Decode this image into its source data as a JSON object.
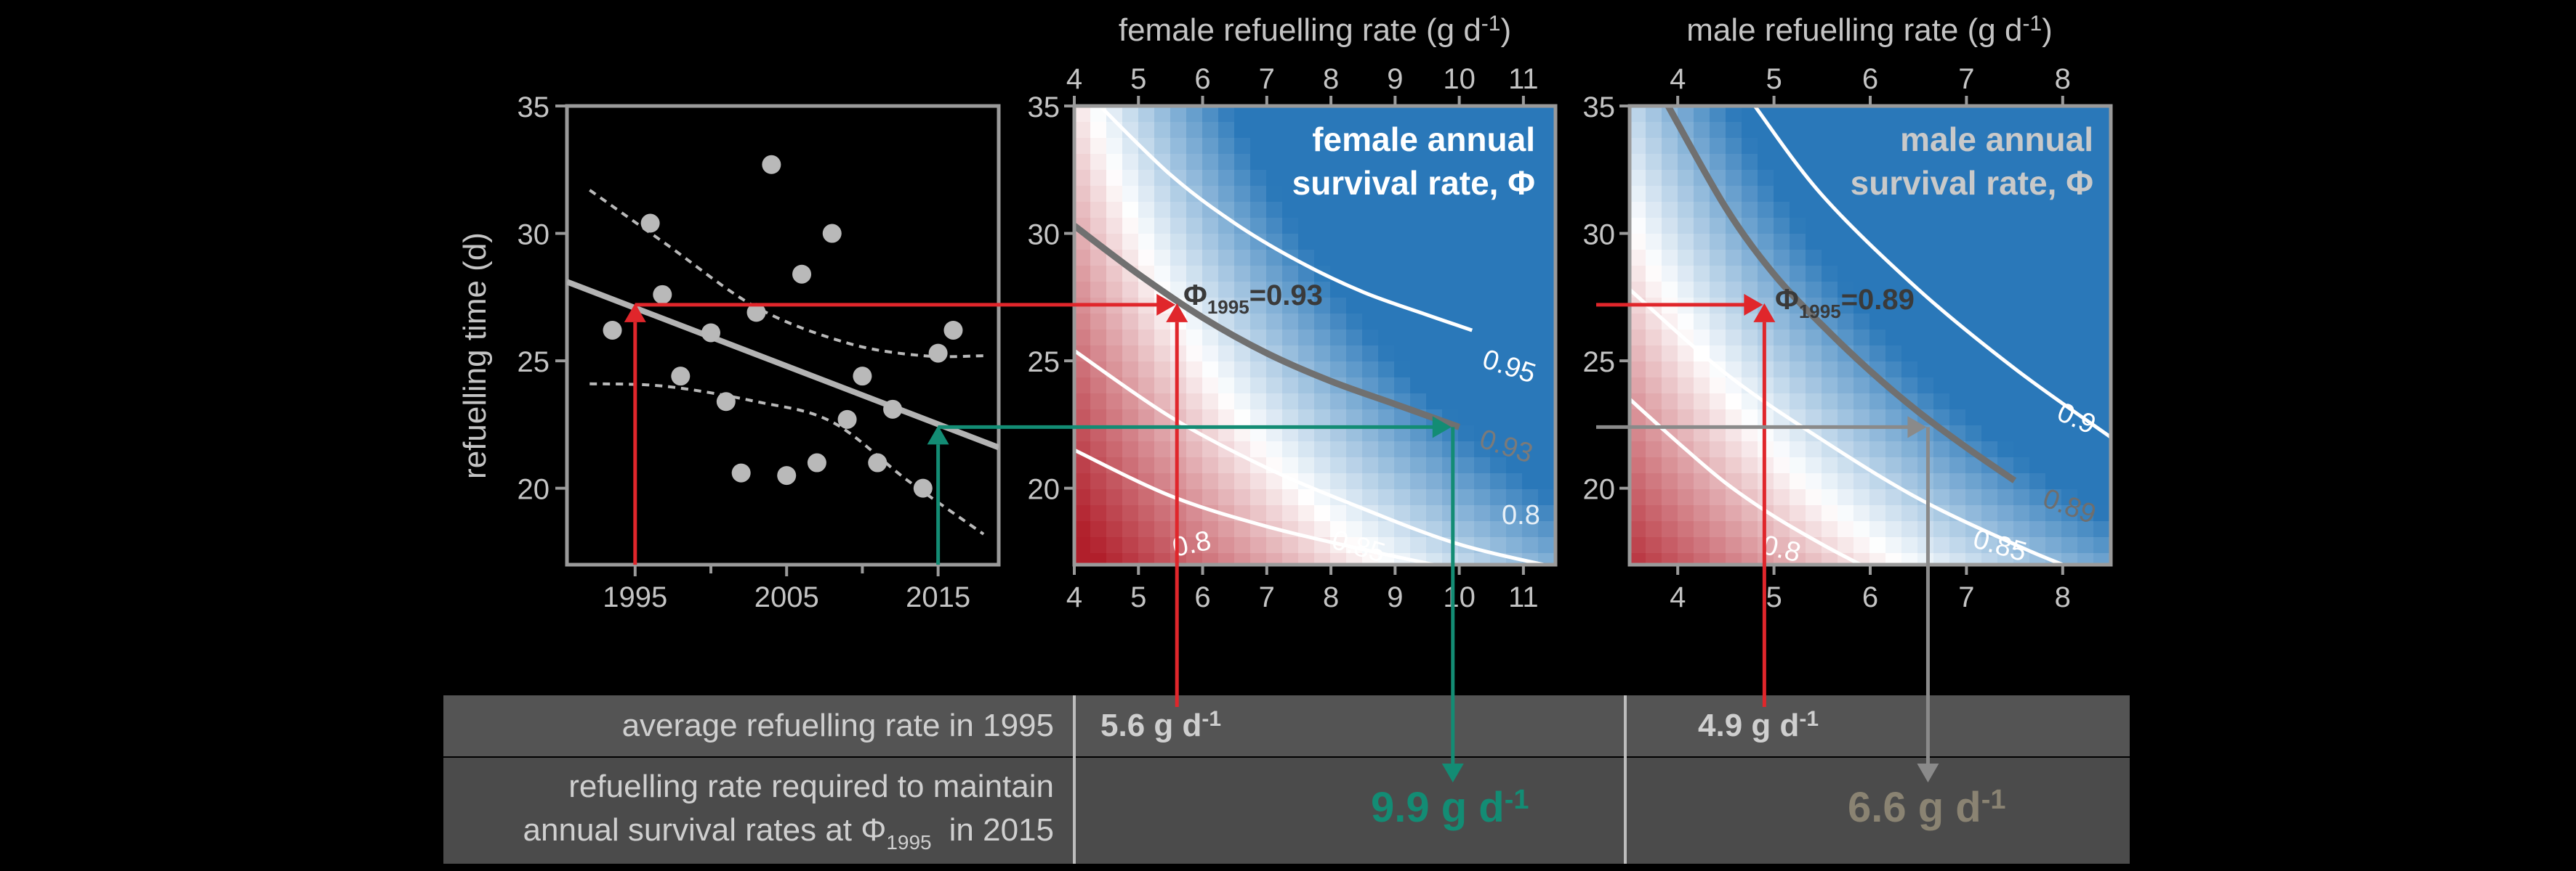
{
  "chart_data": [
    {
      "type": "scatter",
      "ylabel": "refuelling time (d)",
      "xlim": [
        1990.5,
        2019
      ],
      "ylim": [
        17,
        35
      ],
      "xticks": [
        1995,
        2005,
        2015
      ],
      "xminor": [
        2000,
        2010
      ],
      "yticks": [
        20,
        25,
        30,
        35
      ],
      "points": [
        {
          "x": 1993.5,
          "y": 26.2
        },
        {
          "x": 1996.0,
          "y": 30.4
        },
        {
          "x": 1996.8,
          "y": 27.6
        },
        {
          "x": 1998.0,
          "y": 24.4
        },
        {
          "x": 2000.0,
          "y": 26.1
        },
        {
          "x": 2001.0,
          "y": 23.4
        },
        {
          "x": 2002.0,
          "y": 20.6
        },
        {
          "x": 2003.0,
          "y": 26.9
        },
        {
          "x": 2004.0,
          "y": 32.7
        },
        {
          "x": 2005.0,
          "y": 20.5
        },
        {
          "x": 2006.0,
          "y": 28.4
        },
        {
          "x": 2007.0,
          "y": 21.0
        },
        {
          "x": 2008.0,
          "y": 30.0
        },
        {
          "x": 2009.0,
          "y": 22.7
        },
        {
          "x": 2010.0,
          "y": 24.4
        },
        {
          "x": 2011.0,
          "y": 21.0
        },
        {
          "x": 2012.0,
          "y": 23.1
        },
        {
          "x": 2014.0,
          "y": 20.0
        },
        {
          "x": 2015.0,
          "y": 25.3
        },
        {
          "x": 2016.0,
          "y": 26.2
        }
      ],
      "trend_line": [
        {
          "x": 1990.5,
          "y": 28.1
        },
        {
          "x": 2019,
          "y": 21.6
        }
      ],
      "ci_upper": [
        {
          "x": 1992,
          "y": 31.7
        },
        {
          "x": 1997,
          "y": 29.6
        },
        {
          "x": 2003,
          "y": 27.1
        },
        {
          "x": 2009,
          "y": 25.7
        },
        {
          "x": 2014,
          "y": 25.2
        },
        {
          "x": 2018,
          "y": 25.2
        }
      ],
      "ci_lower": [
        {
          "x": 1992,
          "y": 24.1
        },
        {
          "x": 1997,
          "y": 24.0
        },
        {
          "x": 2003,
          "y": 23.4
        },
        {
          "x": 2008,
          "y": 22.6
        },
        {
          "x": 2013,
          "y": 20.3
        },
        {
          "x": 2018,
          "y": 18.2
        }
      ],
      "markers": [
        {
          "x": 1995,
          "y": 27.2
        },
        {
          "x": 2015,
          "y": 22.4
        }
      ]
    },
    {
      "type": "heatmap",
      "title": "female annual survival rate, Φ",
      "title_lines": [
        "female annual",
        "survival rate, Φ"
      ],
      "xlabel": "female refuelling rate (g d-1)",
      "xlabel_main": "female refuelling rate (g d",
      "xlabel_sup": "-1",
      "xlabel_close": ")",
      "xlim": [
        4,
        11.5
      ],
      "ylim": [
        17,
        35
      ],
      "xticks": [
        4,
        5,
        6,
        7,
        8,
        9,
        10,
        11
      ],
      "yticks": [
        20,
        25,
        30,
        35
      ],
      "colormap": {
        "low": "#b11f2b",
        "mid": "#ffffff",
        "high": "#2a78b9"
      },
      "contours": [
        {
          "label": "0.8",
          "points": [
            {
              "x": 4.0,
              "y": 21.5
            },
            {
              "x": 5.5,
              "y": 19.7
            },
            {
              "x": 7.0,
              "y": 18.5
            },
            {
              "x": 8.5,
              "y": 17.6
            },
            {
              "x": 9.6,
              "y": 17.0
            }
          ]
        },
        {
          "label": "0.85",
          "points": [
            {
              "x": 4.0,
              "y": 25.4
            },
            {
              "x": 5.5,
              "y": 22.8
            },
            {
              "x": 7.0,
              "y": 20.8
            },
            {
              "x": 8.5,
              "y": 19.2
            },
            {
              "x": 10.0,
              "y": 17.8
            },
            {
              "x": 11.5,
              "y": 16.9
            }
          ]
        },
        {
          "label": "0.93",
          "points": [
            {
              "x": 4.0,
              "y": 30.3
            },
            {
              "x": 5.0,
              "y": 28.4
            },
            {
              "x": 6.0,
              "y": 26.7
            },
            {
              "x": 7.0,
              "y": 25.3
            },
            {
              "x": 8.0,
              "y": 24.2
            },
            {
              "x": 9.0,
              "y": 23.3
            },
            {
              "x": 10.0,
              "y": 22.4
            }
          ]
        },
        {
          "label": "0.95",
          "points": [
            {
              "x": 4.4,
              "y": 35.0
            },
            {
              "x": 5.5,
              "y": 32.3
            },
            {
              "x": 6.5,
              "y": 30.4
            },
            {
              "x": 7.5,
              "y": 28.9
            },
            {
              "x": 8.5,
              "y": 27.7
            },
            {
              "x": 9.5,
              "y": 26.8
            },
            {
              "x": 10.2,
              "y": 26.2
            }
          ]
        }
      ],
      "label_093_text": "0.93",
      "label_095_text": "0.95",
      "label_085_text": "0.85",
      "label_08_text": "0.8",
      "label_08r_text": "0.8",
      "phi_prefix": "Φ",
      "phi_sub": "1995",
      "phi_value": "=0.93",
      "arrow_1995": {
        "x": 5.6,
        "y": 27.2
      },
      "arrow_2015": {
        "x": 9.9,
        "y": 22.4
      }
    },
    {
      "type": "heatmap",
      "title": "male annual survival rate, Φ",
      "title_lines": [
        "male annual",
        "survival rate, Φ"
      ],
      "xlabel": "male refuelling rate (g d-1)",
      "xlabel_main": "male refuelling rate (g d",
      "xlabel_sup": "-1",
      "xlabel_close": ")",
      "xlim": [
        3.5,
        8.5
      ],
      "ylim": [
        17,
        35
      ],
      "xticks": [
        4,
        5,
        6,
        7,
        8
      ],
      "yticks": [
        20,
        25,
        30,
        35
      ],
      "colormap": {
        "low": "#b11f2b",
        "mid": "#ffffff",
        "high": "#2a78b9"
      },
      "contours": [
        {
          "label": "0.8",
          "points": [
            {
              "x": 3.5,
              "y": 23.5
            },
            {
              "x": 4.0,
              "y": 21.8
            },
            {
              "x": 4.5,
              "y": 20.2
            },
            {
              "x": 5.0,
              "y": 18.9
            },
            {
              "x": 5.5,
              "y": 17.8
            },
            {
              "x": 5.9,
              "y": 17.0
            }
          ]
        },
        {
          "label": "0.85",
          "points": [
            {
              "x": 3.5,
              "y": 27.8
            },
            {
              "x": 4.5,
              "y": 24.5
            },
            {
              "x": 5.5,
              "y": 21.9
            },
            {
              "x": 6.5,
              "y": 19.6
            },
            {
              "x": 7.5,
              "y": 17.8
            },
            {
              "x": 8.0,
              "y": 17.0
            }
          ]
        },
        {
          "label": "0.89",
          "points": [
            {
              "x": 3.9,
              "y": 35.0
            },
            {
              "x": 4.5,
              "y": 31.0
            },
            {
              "x": 5.0,
              "y": 28.4
            },
            {
              "x": 5.5,
              "y": 26.4
            },
            {
              "x": 6.0,
              "y": 24.6
            },
            {
              "x": 6.5,
              "y": 23.0
            },
            {
              "x": 7.0,
              "y": 21.6
            },
            {
              "x": 7.5,
              "y": 20.3
            }
          ]
        },
        {
          "label": "0.9",
          "points": [
            {
              "x": 4.8,
              "y": 35.0
            },
            {
              "x": 5.5,
              "y": 31.5
            },
            {
              "x": 6.5,
              "y": 27.8
            },
            {
              "x": 7.5,
              "y": 24.7
            },
            {
              "x": 8.5,
              "y": 22.0
            }
          ]
        }
      ],
      "label_089_text": "0.89",
      "label_09_text": "0.9",
      "label_085_text": "0.85",
      "label_08_text": "0.8",
      "phi_prefix": "Φ",
      "phi_sub": "1995",
      "phi_value": "=0.89",
      "arrow_1995": {
        "x": 4.9,
        "y": 27.2
      },
      "arrow_2015": {
        "x": 6.6,
        "y": 22.4
      }
    }
  ],
  "table": {
    "row1_label": "average refuelling rate in 1995",
    "row2_line1": "refuelling rate required to maintain",
    "row2_line2a": "annual survival rates at Φ",
    "row2_sub": "1995",
    "row2_line2b": "in 2015",
    "unit_main": "g d",
    "unit_sup": "-1",
    "female_1995": "5.6",
    "male_1995": "4.9",
    "female_2015": "9.9",
    "male_2015": "6.6"
  },
  "colors": {
    "background": "#000000",
    "axis": "#9a9a9a",
    "text": "#c4c4c4",
    "point": "#b9b9b9",
    "red_arrow": "#e0262b",
    "teal_arrow": "#138c74",
    "grey_arrow": "#8a8a8a",
    "grey_contour": "#707070",
    "table_row": "#545454",
    "table_row_dark": "#484848",
    "table_text": "#c7c7c7",
    "female_2015_color": "#138c74",
    "male_2015_color": "#8a8372"
  }
}
